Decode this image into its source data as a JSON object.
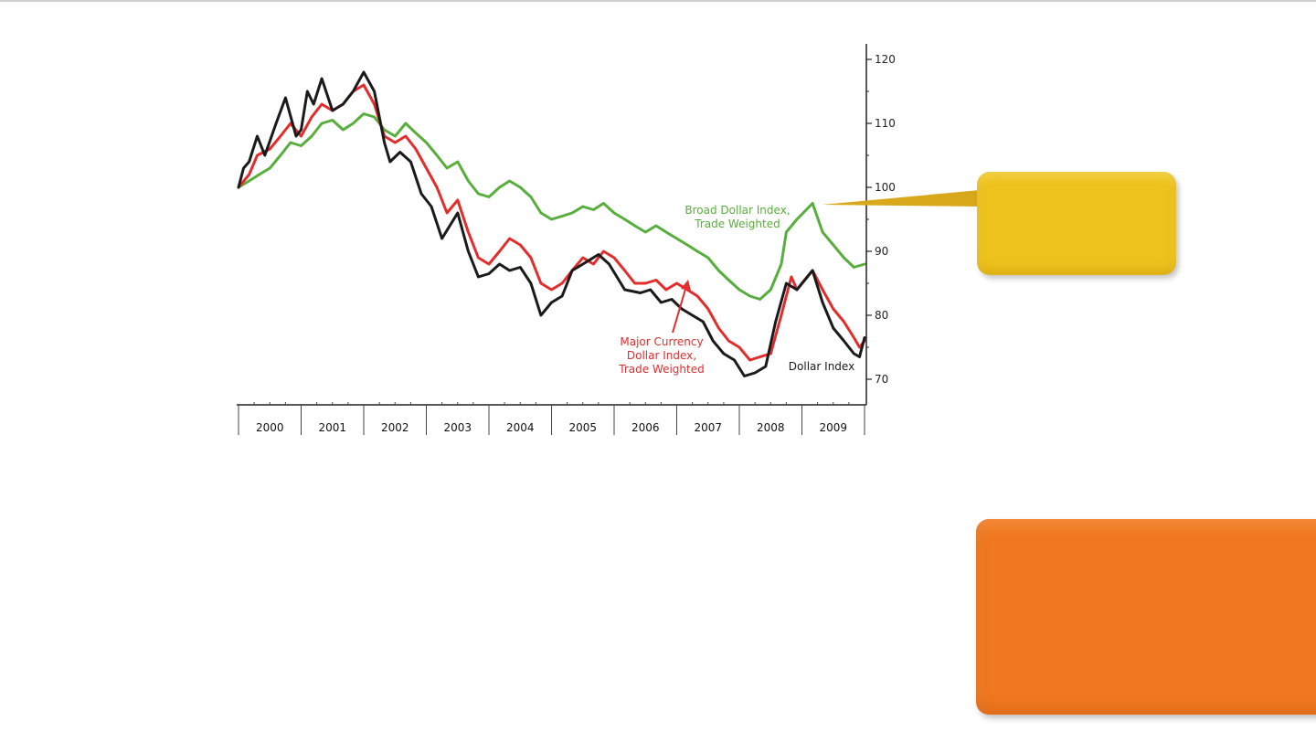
{
  "chart_data": {
    "type": "line",
    "title": "",
    "xlabel": "",
    "ylabel": "",
    "ylim": [
      65,
      123
    ],
    "y_ticks": [
      "70",
      "80",
      "90",
      "100",
      "110",
      "120"
    ],
    "x_range": [
      2000.0,
      2010.0
    ],
    "x_tick_labels": [
      "2000",
      "2001",
      "2002",
      "2003",
      "2004",
      "2005",
      "2006",
      "2007",
      "2008",
      "2009"
    ],
    "grid": false,
    "series": [
      {
        "name": "Dollar Index",
        "color": "#1a1a1a",
        "points": [
          [
            2000.0,
            100
          ],
          [
            2000.08,
            103
          ],
          [
            2000.17,
            104
          ],
          [
            2000.3,
            108
          ],
          [
            2000.42,
            105
          ],
          [
            2000.6,
            110
          ],
          [
            2000.75,
            114
          ],
          [
            2000.92,
            108
          ],
          [
            2001.0,
            109
          ],
          [
            2001.1,
            115
          ],
          [
            2001.2,
            113
          ],
          [
            2001.33,
            117
          ],
          [
            2001.5,
            112
          ],
          [
            2001.67,
            113
          ],
          [
            2001.83,
            115
          ],
          [
            2002.0,
            118
          ],
          [
            2002.17,
            115
          ],
          [
            2002.33,
            107
          ],
          [
            2002.42,
            104
          ],
          [
            2002.58,
            105.5
          ],
          [
            2002.75,
            104
          ],
          [
            2002.92,
            99
          ],
          [
            2003.08,
            97
          ],
          [
            2003.25,
            92
          ],
          [
            2003.5,
            96
          ],
          [
            2003.67,
            90
          ],
          [
            2003.83,
            86
          ],
          [
            2004.0,
            86.5
          ],
          [
            2004.17,
            88
          ],
          [
            2004.33,
            87
          ],
          [
            2004.5,
            87.5
          ],
          [
            2004.67,
            85
          ],
          [
            2004.83,
            80
          ],
          [
            2005.0,
            82
          ],
          [
            2005.17,
            83
          ],
          [
            2005.33,
            87
          ],
          [
            2005.5,
            88
          ],
          [
            2005.75,
            89.5
          ],
          [
            2005.92,
            88
          ],
          [
            2006.17,
            84
          ],
          [
            2006.42,
            83.5
          ],
          [
            2006.58,
            84
          ],
          [
            2006.75,
            82
          ],
          [
            2006.92,
            82.5
          ],
          [
            2007.08,
            81
          ],
          [
            2007.25,
            80
          ],
          [
            2007.42,
            79
          ],
          [
            2007.58,
            76
          ],
          [
            2007.75,
            74
          ],
          [
            2007.92,
            73
          ],
          [
            2008.08,
            70.5
          ],
          [
            2008.25,
            71
          ],
          [
            2008.42,
            72
          ],
          [
            2008.58,
            79
          ],
          [
            2008.75,
            85
          ],
          [
            2008.92,
            84
          ],
          [
            2009.17,
            87
          ],
          [
            2009.33,
            82
          ],
          [
            2009.5,
            78
          ],
          [
            2009.67,
            76
          ],
          [
            2009.83,
            74
          ],
          [
            2009.92,
            73.5
          ],
          [
            2010.0,
            76.5
          ]
        ]
      },
      {
        "name": "Major Currency Dollar Index, Trade Weighted",
        "color": "#e32c2c",
        "points": [
          [
            2000.0,
            100
          ],
          [
            2000.17,
            102
          ],
          [
            2000.3,
            105
          ],
          [
            2000.5,
            106
          ],
          [
            2000.67,
            108
          ],
          [
            2000.83,
            110
          ],
          [
            2001.0,
            108
          ],
          [
            2001.17,
            111
          ],
          [
            2001.33,
            113
          ],
          [
            2001.5,
            112
          ],
          [
            2001.67,
            113
          ],
          [
            2001.83,
            115
          ],
          [
            2002.0,
            116
          ],
          [
            2002.17,
            113
          ],
          [
            2002.33,
            108
          ],
          [
            2002.5,
            107
          ],
          [
            2002.67,
            108
          ],
          [
            2002.83,
            106
          ],
          [
            2003.0,
            103
          ],
          [
            2003.17,
            100
          ],
          [
            2003.33,
            96
          ],
          [
            2003.5,
            98
          ],
          [
            2003.67,
            93
          ],
          [
            2003.83,
            89
          ],
          [
            2004.0,
            88
          ],
          [
            2004.17,
            90
          ],
          [
            2004.33,
            92
          ],
          [
            2004.5,
            91
          ],
          [
            2004.67,
            89
          ],
          [
            2004.83,
            85
          ],
          [
            2005.0,
            84
          ],
          [
            2005.17,
            85
          ],
          [
            2005.33,
            87
          ],
          [
            2005.5,
            89
          ],
          [
            2005.67,
            88
          ],
          [
            2005.83,
            90
          ],
          [
            2006.0,
            89
          ],
          [
            2006.17,
            87
          ],
          [
            2006.33,
            85
          ],
          [
            2006.5,
            85
          ],
          [
            2006.67,
            85.5
          ],
          [
            2006.83,
            84
          ],
          [
            2007.0,
            85
          ],
          [
            2007.17,
            84
          ],
          [
            2007.33,
            83
          ],
          [
            2007.5,
            81
          ],
          [
            2007.67,
            78
          ],
          [
            2007.83,
            76
          ],
          [
            2008.0,
            75
          ],
          [
            2008.17,
            73
          ],
          [
            2008.33,
            73.5
          ],
          [
            2008.5,
            74
          ],
          [
            2008.67,
            80
          ],
          [
            2008.83,
            86
          ],
          [
            2008.92,
            84
          ],
          [
            2009.0,
            85
          ],
          [
            2009.17,
            87
          ],
          [
            2009.33,
            84
          ],
          [
            2009.5,
            81
          ],
          [
            2009.67,
            79
          ],
          [
            2009.83,
            76.5
          ],
          [
            2009.92,
            75
          ],
          [
            2010.0,
            76
          ]
        ]
      },
      {
        "name": "Broad Dollar Index, Trade Weighted",
        "color": "#58ae3c",
        "points": [
          [
            2000.0,
            100
          ],
          [
            2000.17,
            101
          ],
          [
            2000.33,
            102
          ],
          [
            2000.5,
            103
          ],
          [
            2000.67,
            105
          ],
          [
            2000.83,
            107
          ],
          [
            2001.0,
            106.5
          ],
          [
            2001.17,
            108
          ],
          [
            2001.33,
            110
          ],
          [
            2001.5,
            110.5
          ],
          [
            2001.67,
            109
          ],
          [
            2001.83,
            110
          ],
          [
            2002.0,
            111.5
          ],
          [
            2002.17,
            111
          ],
          [
            2002.33,
            109
          ],
          [
            2002.5,
            108
          ],
          [
            2002.67,
            110
          ],
          [
            2002.83,
            108.5
          ],
          [
            2003.0,
            107
          ],
          [
            2003.17,
            105
          ],
          [
            2003.33,
            103
          ],
          [
            2003.5,
            104
          ],
          [
            2003.67,
            101
          ],
          [
            2003.83,
            99
          ],
          [
            2004.0,
            98.5
          ],
          [
            2004.17,
            100
          ],
          [
            2004.33,
            101
          ],
          [
            2004.5,
            100
          ],
          [
            2004.67,
            98.5
          ],
          [
            2004.83,
            96
          ],
          [
            2005.0,
            95
          ],
          [
            2005.17,
            95.5
          ],
          [
            2005.33,
            96
          ],
          [
            2005.5,
            97
          ],
          [
            2005.67,
            96.5
          ],
          [
            2005.83,
            97.5
          ],
          [
            2006.0,
            96
          ],
          [
            2006.17,
            95
          ],
          [
            2006.33,
            94
          ],
          [
            2006.5,
            93
          ],
          [
            2006.67,
            94
          ],
          [
            2006.83,
            93
          ],
          [
            2007.0,
            92
          ],
          [
            2007.17,
            91
          ],
          [
            2007.33,
            90
          ],
          [
            2007.5,
            89
          ],
          [
            2007.67,
            87
          ],
          [
            2007.83,
            85.5
          ],
          [
            2008.0,
            84
          ],
          [
            2008.17,
            83
          ],
          [
            2008.33,
            82.5
          ],
          [
            2008.5,
            84
          ],
          [
            2008.67,
            88
          ],
          [
            2008.75,
            93
          ],
          [
            2008.92,
            95
          ],
          [
            2009.17,
            97.5
          ],
          [
            2009.33,
            93
          ],
          [
            2009.5,
            91
          ],
          [
            2009.67,
            89
          ],
          [
            2009.83,
            87.5
          ],
          [
            2010.0,
            88
          ]
        ]
      }
    ],
    "annotations": {
      "broad_line1": "Broad Dollar Index,",
      "broad_line2": "Trade Weighted",
      "major_line1": "Major Currency",
      "major_line2": "Dollar Index,",
      "major_line3": "Trade Weighted",
      "dollar": "Dollar Index"
    }
  },
  "callouts": {
    "yellow_color": "#edc21c",
    "orange_color": "#f07820"
  }
}
